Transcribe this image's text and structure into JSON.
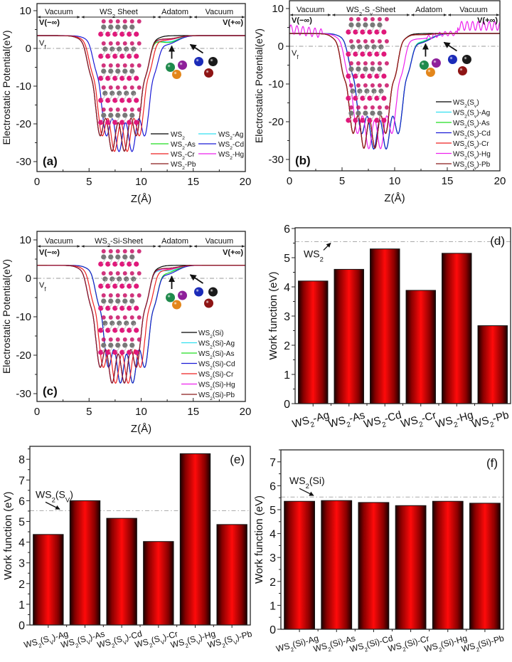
{
  "chart_data": [
    {
      "panel": "(a)",
      "type": "line",
      "xlabel": "Z(Å)",
      "ylabel": "Electrostatic Potential(eV)",
      "xlim": [
        0,
        20
      ],
      "ylim": [
        -32,
        12
      ],
      "xticks": [
        "0",
        "5",
        "10",
        "15",
        "20"
      ],
      "yticks": [
        "-30",
        "-20",
        "-10",
        "0",
        "10"
      ],
      "regions": [
        {
          "label": "Vacuum",
          "from": 0,
          "to": 4.2
        },
        {
          "label": "WS2 Sheet",
          "from": 4.2,
          "to": 11.5
        },
        {
          "label": "Adatom",
          "from": 11.5,
          "to": 15
        },
        {
          "label": "Vacuum",
          "from": 15,
          "to": 20
        }
      ],
      "annotations": {
        "left": "V(−∞)",
        "right": "V(+∞)",
        "fermi": "Vf"
      },
      "fermi_level": 0,
      "vacuum_level": 3.4,
      "legend_columns": 2,
      "series": [
        {
          "name": "WS2",
          "color": "#000000",
          "wells": [
            6.0,
            9.6
          ],
          "adatom": 0
        },
        {
          "name": "WS2-Ag",
          "color": "#33e0f0",
          "wells": [
            6.0,
            9.6
          ],
          "adatom": 1.6
        },
        {
          "name": "WS2-As",
          "color": "#22dd22",
          "wells": [
            6.0,
            9.6
          ],
          "adatom": 1.8
        },
        {
          "name": "WS2-Cd",
          "color": "#1a1ad6",
          "wells": [
            6.6,
            10.4
          ],
          "adatom": 2.0
        },
        {
          "name": "WS2-Cr",
          "color": "#ee2222",
          "wells": [
            6.2,
            9.9
          ],
          "adatom": 1.0
        },
        {
          "name": "WS2-Hg",
          "color": "#ee22ee",
          "wells": [
            6.0,
            9.6
          ],
          "adatom": 0.9
        },
        {
          "name": "WS2-Pb",
          "color": "#8b1a1a",
          "wells": [
            6.0,
            9.6
          ],
          "adatom": 0.8
        }
      ]
    },
    {
      "panel": "(b)",
      "type": "line",
      "xlabel": "Z(Å)",
      "ylabel": "Electrostatic Potential(eV)",
      "xlim": [
        0,
        20
      ],
      "ylim": [
        -32,
        12
      ],
      "xticks": [
        "0",
        "5",
        "10",
        "15",
        "20"
      ],
      "yticks": [
        "-30",
        "-20",
        "-10",
        "0",
        "10"
      ],
      "regions": [
        {
          "label": "Vacuum",
          "from": 0,
          "to": 4.0
        },
        {
          "label": "WS2-Sv-Sheet",
          "from": 4.0,
          "to": 11.5
        },
        {
          "label": "Adatom",
          "from": 11.5,
          "to": 15
        },
        {
          "label": "Vacuum",
          "from": 15,
          "to": 20
        }
      ],
      "annotations": {
        "left": "V(−∞)",
        "right": "V(+∞)",
        "fermi": "Vf"
      },
      "fermi_level": 0,
      "vacuum_level": 3.4,
      "legend_columns": 1,
      "series": [
        {
          "name": "WS2(Sv)",
          "color": "#000000",
          "wells": [
            6.0,
            9.2
          ],
          "adatom": 0
        },
        {
          "name": "WS2(Sv)-Ag",
          "color": "#33e0f0",
          "wells": [
            6.8,
            10.4
          ],
          "adatom": 1.7
        },
        {
          "name": "WS2(Sv)-As",
          "color": "#22dd22",
          "wells": [
            6.8,
            10.4
          ],
          "adatom": 1.9
        },
        {
          "name": "WS2(Sv)-Cd",
          "color": "#1a1ad6",
          "wells": [
            6.8,
            10.4
          ],
          "adatom": 2.1
        },
        {
          "name": "WS2(Sv)-Cr",
          "color": "#ee2222",
          "wells": [
            6.0,
            9.2
          ],
          "adatom": 0.3
        },
        {
          "name": "WS2(Sv)-Hg",
          "color": "#ee22ee",
          "wells": [
            6.4,
            9.8
          ],
          "adatom": 1.3,
          "noisy": true
        },
        {
          "name": "WS2(Sv)-Pb",
          "color": "#8b1a1a",
          "wells": [
            6.0,
            9.2
          ],
          "adatom": 0.3
        }
      ]
    },
    {
      "panel": "(c)",
      "type": "line",
      "xlabel": "Z(Å)",
      "ylabel": "Electrostatic Potential(eV)",
      "xlim": [
        0,
        20
      ],
      "ylim": [
        -32,
        12
      ],
      "xticks": [
        "0",
        "5",
        "10",
        "15",
        "20"
      ],
      "yticks": [
        "-30",
        "-20",
        "-10",
        "0",
        "10"
      ],
      "regions": [
        {
          "label": "Vacuum",
          "from": 0,
          "to": 4.2
        },
        {
          "label": "WS2-Si-Sheet",
          "from": 4.2,
          "to": 11.5
        },
        {
          "label": "Adatom",
          "from": 11.5,
          "to": 15
        },
        {
          "label": "Vacuum",
          "from": 15,
          "to": 20
        }
      ],
      "annotations": {
        "left": "V(−∞)",
        "right": "V(+∞)",
        "fermi": "Vf"
      },
      "fermi_level": 0,
      "vacuum_level": 3.4,
      "legend_columns": 1,
      "series": [
        {
          "name": "WS2(Si)",
          "color": "#000000",
          "wells": [
            6.0,
            9.6
          ],
          "adatom": 0
        },
        {
          "name": "WS2(Si)-Ag",
          "color": "#33e0f0",
          "wells": [
            6.0,
            9.6
          ],
          "adatom": 1.4
        },
        {
          "name": "WS2(Si)-As",
          "color": "#22dd22",
          "wells": [
            6.8,
            10.4
          ],
          "adatom": 1.6
        },
        {
          "name": "WS2(Si)-Cd",
          "color": "#1a1ad6",
          "wells": [
            6.8,
            10.4
          ],
          "adatom": 2.0
        },
        {
          "name": "WS2(Si)-Cr",
          "color": "#ee2222",
          "wells": [
            6.3,
            10.0
          ],
          "adatom": 1.0
        },
        {
          "name": "WS2(Si)-Hg",
          "color": "#ee22ee",
          "wells": [
            6.0,
            9.6
          ],
          "adatom": 0.9
        },
        {
          "name": "WS2(Si)-Pb",
          "color": "#8b1a1a",
          "wells": [
            6.0,
            9.6
          ],
          "adatom": 0.7
        }
      ]
    },
    {
      "panel": "(d)",
      "type": "bar",
      "xlabel": "",
      "ylabel": "Work function (eV)",
      "ylim": [
        0,
        6
      ],
      "yticks": [
        "0",
        "1",
        "2",
        "3",
        "4",
        "5",
        "6"
      ],
      "categories": [
        "WS2-Ag",
        "WS2-As",
        "WS2-Cd",
        "WS2-Cr",
        "WS2-Hg",
        "WS2-Pb"
      ],
      "values": [
        4.2,
        4.6,
        5.3,
        3.88,
        5.15,
        2.67
      ],
      "reference": {
        "label": "WS2",
        "value": 5.55
      }
    },
    {
      "panel": "(e)",
      "type": "bar",
      "xlabel": "",
      "ylabel": "Work function (eV)",
      "ylim": [
        0,
        8.6
      ],
      "yticks": [
        "0",
        "1",
        "2",
        "3",
        "4",
        "5",
        "6",
        "7",
        "8"
      ],
      "categories": [
        "WS2(SV)-Ag",
        "WS2(SV)-As",
        "WS2(SV)-Cd",
        "WS2(SV)-Cr",
        "WS2(SV)-Hg",
        "WS2(SV)-Pb"
      ],
      "values": [
        4.37,
        6.0,
        5.15,
        4.03,
        8.27,
        4.85
      ],
      "reference": {
        "label": "WS2(SV)",
        "value": 5.52
      }
    },
    {
      "panel": "(f)",
      "type": "bar",
      "xlabel": "",
      "ylabel": "Work function (eV)",
      "ylim": [
        0,
        7.5
      ],
      "yticks": [
        "0",
        "1",
        "2",
        "3",
        "4",
        "5",
        "6",
        "7"
      ],
      "categories": [
        "WS2(Si)-Ag",
        "WS2(Si)-As",
        "WS2(Si)-Cd",
        "WS2(Si)-Cr",
        "WS2(Si)-Hg",
        "WS2(Si)-Pb"
      ],
      "values": [
        5.35,
        5.38,
        5.3,
        5.17,
        5.35,
        5.27
      ],
      "reference": {
        "label": "WS2(Si)",
        "value": 5.53
      }
    }
  ]
}
